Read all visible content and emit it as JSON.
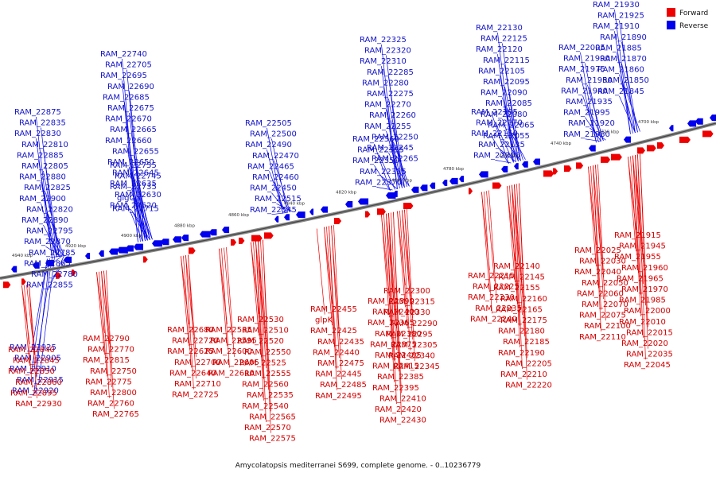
{
  "legend": {
    "forward_label": "Forward",
    "reverse_label": "Reverse",
    "forward_color": "#ee0000",
    "reverse_color": "#0000ee"
  },
  "caption": "Amycolatopsis mediterranei S699, complete genome. - 0..10236779",
  "ticks": [
    "4940 kbp",
    "4920 kbp",
    "4900 kbp",
    "4880 kbp",
    "4860 kbp",
    "4840 kbp",
    "4820 kbp",
    "4800 kbp",
    "4780 kbp",
    "4760 kbp",
    "4740 kbp",
    "4720 kbp",
    "4700 kbp"
  ],
  "reverse_genes": [
    "RAM_21930",
    "RAM_21925",
    "RAM_21910",
    "RAM_21890",
    "RAM_21885",
    "RAM_21870",
    "RAM_21860",
    "RAM_21850",
    "RAM_21845",
    "RAM_22005",
    "RAM_21990",
    "RAM_21975",
    "RAM_21950",
    "RAM_21940",
    "RAM_21935",
    "RAM_21995",
    "RAM_21920",
    "RAM_21980",
    "RAM_22130",
    "RAM_22125",
    "RAM_22120",
    "RAM_22115",
    "RAM_22105",
    "RAM_22095",
    "RAM_22090",
    "RAM_22085",
    "RAM_22080",
    "RAM_22065",
    "RAM_22055",
    "RAM_22195",
    "RAM_22170",
    "RAM_22150",
    "RAM_22135",
    "RAM_22200",
    "RAM_22325",
    "RAM_22320",
    "RAM_22310",
    "RAM_22285",
    "RAM_22280",
    "RAM_22275",
    "RAM_22270",
    "RAM_22260",
    "RAM_22255",
    "RAM_22250",
    "RAM_22245",
    "RAM_22265",
    "RAM_22360",
    "RAM_22355",
    "RAM_22350",
    "RAM_22335",
    "RAM_22370",
    "RAM_22505",
    "RAM_22500",
    "RAM_22490",
    "RAM_22470",
    "RAM_22465",
    "RAM_22460",
    "RAM_22450",
    "RAM_22515",
    "RAM_22545",
    "RAM_22740",
    "RAM_22705",
    "RAM_22695",
    "RAM_22690",
    "RAM_22685",
    "RAM_22675",
    "RAM_22670",
    "RAM_22665",
    "RAM_22660",
    "RAM_22655",
    "RAM_22650",
    "RAM_22645",
    "RAM_22635",
    "RAM_22630",
    "RAM_22620",
    "RAM_22755",
    "RAM_22745",
    "RAM_22735",
    "glgC",
    "RAM_22715",
    "RAM_22875",
    "RAM_22835",
    "RAM_22830",
    "RAM_22810",
    "RAM_22885",
    "RAM_22805",
    "RAM_22880",
    "RAM_22825",
    "RAM_22900",
    "RAM_22820",
    "RAM_22890",
    "RAM_22795",
    "RAM_22870",
    "RAM_22785",
    "RAM_22865",
    "RAM_22780",
    "RAM_22855",
    "RAM_22925",
    "RAM_22905",
    "RAM_22910",
    "RAM_22915",
    "RAM_22920"
  ],
  "forward_genes": [
    "RAM_21915",
    "RAM_21945",
    "RAM_21955",
    "RAM_21960",
    "RAM_21965",
    "RAM_21970",
    "RAM_21985",
    "RAM_22000",
    "RAM_22010",
    "RAM_22015",
    "RAM_22020",
    "RAM_22035",
    "RAM_22045",
    "RAM_22025",
    "RAM_22030",
    "RAM_22040",
    "RAM_22050",
    "RAM_22060",
    "RAM_22070",
    "RAM_22075",
    "RAM_22100",
    "RAM_22110",
    "RAM_22140",
    "RAM_22145",
    "RAM_22155",
    "RAM_22160",
    "RAM_22165",
    "RAM_22175",
    "RAM_22180",
    "RAM_22185",
    "RAM_22190",
    "RAM_22205",
    "RAM_22210",
    "RAM_22220",
    "RAM_22215",
    "RAM_22225",
    "RAM_22230",
    "RAM_22235",
    "RAM_22240",
    "RAM_22300",
    "RAM_22315",
    "RAM_22330",
    "RAM_22290",
    "RAM_22295",
    "RAM_22305",
    "RAM_22340",
    "RAM_22345",
    "RAM_22390",
    "RAM_22400",
    "RAM_22365",
    "RAM_22380",
    "RAM_22375",
    "RAM_22405",
    "RAM_22415",
    "RAM_22385",
    "RAM_22395",
    "RAM_22410",
    "RAM_22420",
    "RAM_22430",
    "RAM_22455",
    "glpK",
    "RAM_22425",
    "RAM_22435",
    "RAM_22440",
    "RAM_22475",
    "RAM_22445",
    "RAM_22485",
    "RAM_22495",
    "RAM_22530",
    "RAM_22510",
    "RAM_22520",
    "RAM_22550",
    "RAM_22525",
    "RAM_22555",
    "RAM_22560",
    "RAM_22535",
    "RAM_22540",
    "RAM_22565",
    "RAM_22570",
    "RAM_22575",
    "RAM_22585",
    "RAM_22595",
    "RAM_22600",
    "RAM_22605",
    "RAM_22610",
    "RAM_22680",
    "RAM_22720",
    "RAM_22625",
    "RAM_22700",
    "RAM_22640",
    "RAM_22710",
    "RAM_22725",
    "RAM_22790",
    "RAM_22770",
    "RAM_22815",
    "RAM_22750",
    "RAM_22775",
    "RAM_22800",
    "RAM_22760",
    "RAM_22765",
    "RAM_22840",
    "RAM_22845",
    "RAM_22850",
    "RAM_22860",
    "RAM_22895",
    "RAM_22930"
  ]
}
